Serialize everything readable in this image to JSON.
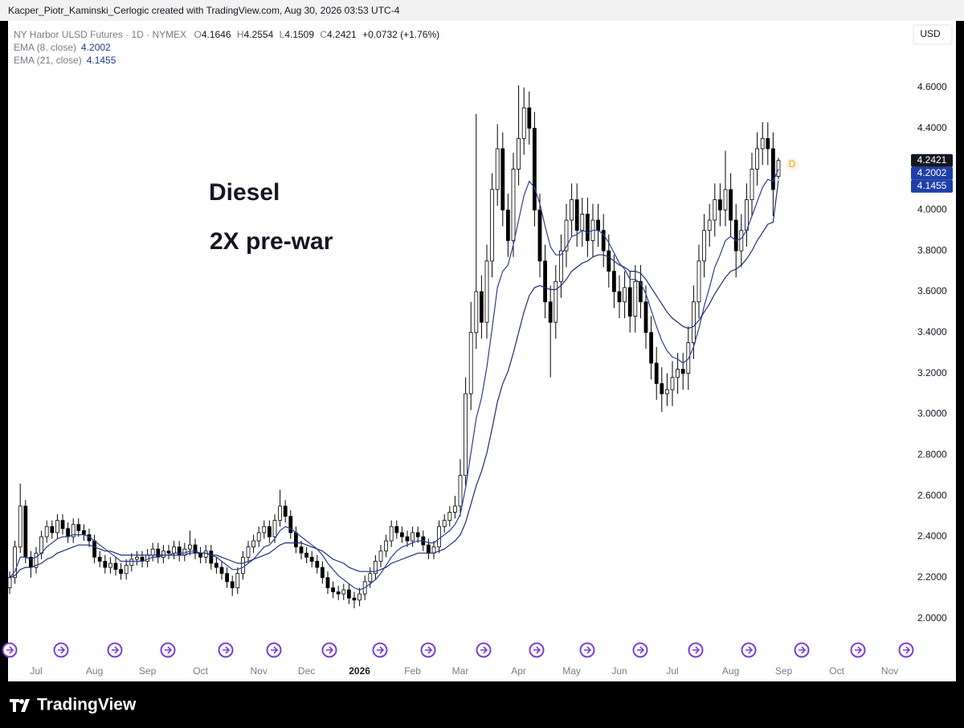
{
  "header": {
    "attribution": "Kacper_Piotr_Kaminski_Cerlogic created with TradingView.com, Aug 30, 2026 03:53 UTC-4"
  },
  "chart_data": {
    "type": "candlestick",
    "title": "NY Harbor ULSD Futures · 1D · NYMEX",
    "ohlc_labels": [
      "O",
      "H",
      "L",
      "C"
    ],
    "change": "+0.0732 (+1.76%)",
    "currency": "USD",
    "session_marker": "D",
    "annotations": [
      "Diesel",
      "2X pre-war"
    ],
    "grid": false,
    "up_color": "#ffffff",
    "down_color": "#000000",
    "categories": [
      null,
      null,
      null,
      null,
      null,
      "Jul",
      null,
      null,
      null,
      null,
      null,
      null,
      null,
      null,
      null,
      null,
      "Aug",
      null,
      null,
      null,
      null,
      null,
      null,
      null,
      null,
      null,
      "Sep",
      null,
      null,
      null,
      null,
      null,
      null,
      null,
      null,
      null,
      "Oct",
      null,
      null,
      null,
      null,
      null,
      null,
      null,
      null,
      null,
      null,
      "Nov",
      null,
      null,
      null,
      null,
      null,
      null,
      null,
      null,
      "Dec",
      null,
      null,
      null,
      null,
      null,
      null,
      null,
      null,
      null,
      "2026",
      null,
      null,
      null,
      null,
      null,
      null,
      null,
      null,
      null,
      "Feb",
      null,
      null,
      null,
      null,
      null,
      null,
      null,
      null,
      "Mar",
      null,
      null,
      null,
      null,
      null,
      null,
      null,
      null,
      null,
      null,
      "Apr",
      null,
      null,
      null,
      null,
      null,
      null,
      null,
      null,
      null,
      "May",
      null,
      null,
      null,
      null,
      null,
      null,
      null,
      null,
      "Jun",
      null,
      null,
      null,
      null,
      null,
      null,
      null,
      null,
      null,
      "Jul",
      null,
      null,
      null,
      null,
      null,
      null,
      null,
      null,
      null,
      null,
      "Aug",
      null,
      null,
      null,
      null,
      null,
      null,
      null,
      null,
      null,
      "Sep",
      null,
      null,
      null,
      null,
      null,
      null,
      null,
      null,
      null,
      "Oct",
      null,
      null,
      null,
      null,
      null,
      null,
      null,
      null,
      null,
      "Nov",
      null,
      null,
      null
    ],
    "open": [
      2.15,
      2.2,
      2.35,
      2.55,
      2.3,
      2.25,
      2.32,
      2.4,
      2.45,
      2.42,
      2.48,
      2.44,
      2.4,
      2.46,
      2.43,
      2.41,
      2.38,
      2.3,
      2.28,
      2.25,
      2.27,
      2.24,
      2.22,
      2.26,
      2.29,
      2.3,
      2.28,
      2.31,
      2.34,
      2.3,
      2.33,
      2.32,
      2.35,
      2.31,
      2.34,
      2.36,
      2.32,
      2.3,
      2.33,
      2.27,
      2.25,
      2.22,
      2.18,
      2.15,
      2.22,
      2.3,
      2.35,
      2.38,
      2.42,
      2.45,
      2.4,
      2.48,
      2.55,
      2.5,
      2.42,
      2.35,
      2.32,
      2.3,
      2.28,
      2.25,
      2.2,
      2.15,
      2.13,
      2.12,
      2.14,
      2.1,
      2.09,
      2.12,
      2.18,
      2.22,
      2.28,
      2.33,
      2.38,
      2.45,
      2.42,
      2.4,
      2.38,
      2.42,
      2.4,
      2.36,
      2.32,
      2.35,
      2.45,
      2.48,
      2.52,
      2.55,
      2.7,
      3.1,
      3.4,
      3.6,
      3.45,
      3.75,
      4.1,
      4.3,
      4.0,
      3.85,
      4.2,
      4.35,
      4.5,
      4.4,
      4.0,
      3.75,
      3.55,
      3.45,
      3.65,
      3.8,
      3.95,
      4.05,
      3.9,
      3.98,
      3.85,
      3.95,
      3.9,
      3.8,
      3.7,
      3.6,
      3.55,
      3.62,
      3.48,
      3.65,
      3.55,
      3.4,
      3.25,
      3.15,
      3.1,
      3.12,
      3.18,
      3.22,
      3.2,
      3.35,
      3.55,
      3.75,
      3.9,
      3.95,
      4.05,
      4.0,
      4.1,
      3.95,
      3.8,
      3.9,
      4.05,
      4.2,
      4.3,
      4.35,
      4.3,
      4.1646,
      null,
      null,
      null,
      null,
      null,
      null,
      null,
      null,
      null,
      null,
      null,
      null,
      null,
      null,
      null,
      null,
      null,
      null,
      null,
      null,
      null,
      null,
      null,
      null
    ],
    "high": [
      2.23,
      2.38,
      2.66,
      2.58,
      2.33,
      2.35,
      2.43,
      2.48,
      2.48,
      2.51,
      2.51,
      2.47,
      2.49,
      2.49,
      2.46,
      2.44,
      2.41,
      2.33,
      2.31,
      2.3,
      2.3,
      2.27,
      2.29,
      2.32,
      2.33,
      2.33,
      2.34,
      2.37,
      2.37,
      2.36,
      2.36,
      2.38,
      2.38,
      2.37,
      2.43,
      2.39,
      2.35,
      2.36,
      2.36,
      2.3,
      2.28,
      2.25,
      2.21,
      2.25,
      2.33,
      2.38,
      2.41,
      2.45,
      2.48,
      2.48,
      2.51,
      2.63,
      2.58,
      2.53,
      2.45,
      2.38,
      2.35,
      2.33,
      2.31,
      2.28,
      2.23,
      2.18,
      2.16,
      2.17,
      2.17,
      2.13,
      2.15,
      2.21,
      2.25,
      2.31,
      2.36,
      2.41,
      2.48,
      2.48,
      2.45,
      2.43,
      2.45,
      2.45,
      2.43,
      2.39,
      2.38,
      2.48,
      2.51,
      2.55,
      2.6,
      2.78,
      3.18,
      3.55,
      4.47,
      3.68,
      3.83,
      4.18,
      4.42,
      4.38,
      4.08,
      4.28,
      4.61,
      4.6,
      4.58,
      4.48,
      4.08,
      3.83,
      3.63,
      3.73,
      3.88,
      4.03,
      4.13,
      4.13,
      4.06,
      4.06,
      4.03,
      4.03,
      3.98,
      3.88,
      3.78,
      3.68,
      3.7,
      3.7,
      3.73,
      3.73,
      3.63,
      3.48,
      3.33,
      3.23,
      3.2,
      3.26,
      3.3,
      3.3,
      3.43,
      3.63,
      3.83,
      3.98,
      4.03,
      4.13,
      4.13,
      4.29,
      4.18,
      4.03,
      3.98,
      4.13,
      4.28,
      4.38,
      4.43,
      4.43,
      4.38,
      4.2554,
      null,
      null,
      null,
      null,
      null,
      null,
      null,
      null,
      null,
      null,
      null,
      null,
      null,
      null,
      null,
      null,
      null,
      null,
      null,
      null,
      null,
      null,
      null,
      null
    ],
    "low": [
      2.12,
      2.17,
      2.32,
      2.27,
      2.2,
      2.22,
      2.29,
      2.37,
      2.39,
      2.39,
      2.41,
      2.37,
      2.37,
      2.4,
      2.38,
      2.35,
      2.27,
      2.25,
      2.22,
      2.22,
      2.21,
      2.19,
      2.19,
      2.23,
      2.26,
      2.25,
      2.25,
      2.28,
      2.27,
      2.27,
      2.29,
      2.29,
      2.28,
      2.28,
      2.31,
      2.29,
      2.27,
      2.27,
      2.24,
      2.22,
      2.19,
      2.15,
      2.11,
      2.12,
      2.19,
      2.27,
      2.32,
      2.35,
      2.39,
      2.37,
      2.37,
      2.45,
      2.47,
      2.39,
      2.32,
      2.29,
      2.27,
      2.25,
      2.22,
      2.17,
      2.12,
      2.1,
      2.09,
      2.09,
      2.07,
      2.05,
      2.06,
      2.09,
      2.15,
      2.19,
      2.25,
      2.3,
      2.35,
      2.39,
      2.37,
      2.35,
      2.35,
      2.37,
      2.33,
      2.29,
      2.29,
      2.32,
      2.42,
      2.45,
      2.49,
      2.5,
      2.65,
      3.02,
      3.32,
      3.37,
      3.37,
      3.67,
      4.02,
      3.92,
      3.77,
      3.77,
      4.12,
      4.27,
      4.32,
      3.92,
      3.67,
      3.47,
      3.18,
      3.37,
      3.57,
      3.72,
      3.87,
      3.82,
      3.82,
      3.77,
      3.77,
      3.82,
      3.72,
      3.62,
      3.52,
      3.47,
      3.47,
      3.4,
      3.4,
      3.47,
      3.32,
      3.17,
      3.07,
      3.01,
      3.04,
      3.04,
      3.1,
      3.12,
      3.12,
      3.27,
      3.47,
      3.67,
      3.82,
      3.87,
      3.92,
      3.92,
      3.87,
      3.67,
      3.72,
      3.82,
      3.97,
      4.12,
      4.22,
      4.22,
      3.97,
      4.1509,
      null,
      null,
      null,
      null,
      null,
      null,
      null,
      null,
      null,
      null,
      null,
      null,
      null,
      null,
      null,
      null,
      null,
      null,
      null,
      null,
      null,
      null,
      null,
      null
    ],
    "close": [
      2.2,
      2.35,
      2.55,
      2.3,
      2.25,
      2.32,
      2.4,
      2.45,
      2.42,
      2.48,
      2.44,
      2.4,
      2.46,
      2.43,
      2.41,
      2.38,
      2.3,
      2.28,
      2.25,
      2.27,
      2.24,
      2.22,
      2.26,
      2.29,
      2.3,
      2.28,
      2.31,
      2.34,
      2.3,
      2.33,
      2.32,
      2.35,
      2.31,
      2.34,
      2.36,
      2.32,
      2.3,
      2.33,
      2.27,
      2.25,
      2.22,
      2.18,
      2.15,
      2.22,
      2.3,
      2.35,
      2.38,
      2.42,
      2.45,
      2.4,
      2.48,
      2.55,
      2.5,
      2.42,
      2.35,
      2.32,
      2.3,
      2.28,
      2.25,
      2.2,
      2.15,
      2.13,
      2.12,
      2.14,
      2.1,
      2.09,
      2.12,
      2.18,
      2.22,
      2.28,
      2.33,
      2.38,
      2.45,
      2.42,
      2.4,
      2.38,
      2.42,
      2.4,
      2.36,
      2.32,
      2.35,
      2.45,
      2.48,
      2.52,
      2.55,
      2.7,
      3.1,
      3.4,
      3.6,
      3.45,
      3.75,
      4.1,
      4.3,
      4.0,
      3.85,
      4.2,
      4.35,
      4.5,
      4.4,
      4.0,
      3.75,
      3.55,
      3.45,
      3.65,
      3.8,
      3.95,
      4.05,
      3.9,
      3.98,
      3.85,
      3.95,
      3.9,
      3.8,
      3.7,
      3.6,
      3.55,
      3.62,
      3.48,
      3.65,
      3.55,
      3.4,
      3.25,
      3.15,
      3.1,
      3.12,
      3.18,
      3.22,
      3.2,
      3.35,
      3.55,
      3.75,
      3.9,
      3.95,
      4.05,
      4.0,
      4.1,
      3.95,
      3.8,
      3.9,
      4.05,
      4.2,
      4.3,
      4.35,
      4.3,
      4.1,
      4.2421,
      null,
      null,
      null,
      null,
      null,
      null,
      null,
      null,
      null,
      null,
      null,
      null,
      null,
      null,
      null,
      null,
      null,
      null,
      null,
      null,
      null,
      null,
      null,
      null
    ],
    "series": [
      {
        "name": "EMA (8, close)",
        "color": "#2b3f94",
        "values": [
          2.2,
          2.23,
          2.3,
          2.3,
          2.29,
          2.3,
          2.32,
          2.35,
          2.37,
          2.39,
          2.4,
          2.4,
          2.41,
          2.41,
          2.41,
          2.4,
          2.38,
          2.36,
          2.34,
          2.32,
          2.3,
          2.28,
          2.28,
          2.28,
          2.28,
          2.28,
          2.29,
          2.3,
          2.3,
          2.31,
          2.31,
          2.32,
          2.32,
          2.32,
          2.33,
          2.33,
          2.32,
          2.32,
          2.31,
          2.3,
          2.28,
          2.26,
          2.24,
          2.24,
          2.25,
          2.27,
          2.29,
          2.32,
          2.35,
          2.36,
          2.39,
          2.43,
          2.45,
          2.44,
          2.42,
          2.4,
          2.38,
          2.36,
          2.34,
          2.31,
          2.27,
          2.24,
          2.21,
          2.19,
          2.17,
          2.15,
          2.14,
          2.15,
          2.17,
          2.19,
          2.22,
          2.26,
          2.3,
          2.33,
          2.35,
          2.36,
          2.37,
          2.38,
          2.38,
          2.37,
          2.37,
          2.39,
          2.41,
          2.43,
          2.46,
          2.51,
          2.64,
          2.81,
          2.98,
          3.08,
          3.23,
          3.42,
          3.62,
          3.7,
          3.73,
          3.83,
          3.95,
          4.07,
          4.14,
          4.11,
          4.03,
          3.92,
          3.82,
          3.78,
          3.78,
          3.82,
          3.87,
          3.88,
          3.9,
          3.89,
          3.9,
          3.9,
          3.88,
          3.84,
          3.79,
          3.74,
          3.71,
          3.66,
          3.66,
          3.64,
          3.59,
          3.51,
          3.43,
          3.36,
          3.31,
          3.28,
          3.27,
          3.25,
          3.27,
          3.33,
          3.42,
          3.53,
          3.62,
          3.72,
          3.78,
          3.85,
          3.87,
          3.85,
          3.86,
          3.9,
          3.97,
          4.04,
          4.11,
          4.15,
          4.14,
          4.2002,
          null,
          null,
          null,
          null,
          null,
          null,
          null,
          null,
          null,
          null,
          null,
          null,
          null,
          null,
          null,
          null,
          null,
          null,
          null,
          null,
          null,
          null,
          null,
          null
        ]
      },
      {
        "name": "EMA (21, close)",
        "color": "#1c2d74",
        "values": [
          2.2,
          2.21,
          2.24,
          2.25,
          2.25,
          2.26,
          2.27,
          2.29,
          2.3,
          2.32,
          2.33,
          2.34,
          2.35,
          2.36,
          2.36,
          2.36,
          2.35,
          2.34,
          2.33,
          2.33,
          2.32,
          2.31,
          2.31,
          2.31,
          2.31,
          2.31,
          2.31,
          2.31,
          2.31,
          2.31,
          2.31,
          2.31,
          2.31,
          2.31,
          2.32,
          2.32,
          2.32,
          2.32,
          2.31,
          2.31,
          2.3,
          2.29,
          2.28,
          2.27,
          2.27,
          2.28,
          2.29,
          2.3,
          2.31,
          2.32,
          2.34,
          2.36,
          2.37,
          2.37,
          2.37,
          2.37,
          2.36,
          2.35,
          2.34,
          2.33,
          2.31,
          2.29,
          2.28,
          2.27,
          2.25,
          2.24,
          2.23,
          2.23,
          2.23,
          2.23,
          2.24,
          2.25,
          2.27,
          2.28,
          2.29,
          2.3,
          2.31,
          2.32,
          2.32,
          2.32,
          2.32,
          2.33,
          2.34,
          2.36,
          2.38,
          2.41,
          2.47,
          2.56,
          2.65,
          2.72,
          2.81,
          2.93,
          3.06,
          3.15,
          3.21,
          3.3,
          3.4,
          3.5,
          3.58,
          3.62,
          3.63,
          3.62,
          3.61,
          3.61,
          3.63,
          3.66,
          3.7,
          3.72,
          3.74,
          3.75,
          3.77,
          3.78,
          3.78,
          3.77,
          3.75,
          3.73,
          3.72,
          3.7,
          3.7,
          3.69,
          3.66,
          3.62,
          3.58,
          3.54,
          3.5,
          3.47,
          3.45,
          3.43,
          3.42,
          3.43,
          3.46,
          3.5,
          3.54,
          3.59,
          3.63,
          3.67,
          3.7,
          3.71,
          3.73,
          3.76,
          3.8,
          3.85,
          3.89,
          3.93,
          3.94,
          4.1455,
          null,
          null,
          null,
          null,
          null,
          null,
          null,
          null,
          null,
          null,
          null,
          null,
          null,
          null,
          null,
          null,
          null,
          null,
          null,
          null,
          null,
          null,
          null,
          null
        ]
      }
    ],
    "ylim": [
      1.92,
      4.91
    ],
    "yticks": [
      {
        "value": 2,
        "label": "2.0000"
      },
      {
        "value": 2.2,
        "label": "2.2000"
      },
      {
        "value": 2.4,
        "label": "2.4000"
      },
      {
        "value": 2.6,
        "label": "2.6000"
      },
      {
        "value": 2.8,
        "label": "2.8000"
      },
      {
        "value": 3,
        "label": "3.0000"
      },
      {
        "value": 3.2,
        "label": "3.2000"
      },
      {
        "value": 3.4,
        "label": "3.4000"
      },
      {
        "value": 3.6,
        "label": "3.6000"
      },
      {
        "value": 3.8,
        "label": "3.8000"
      },
      {
        "value": 4,
        "label": "4.0000"
      },
      {
        "value": 4.2,
        "label": "4.2000"
      },
      {
        "value": 4.4,
        "label": "4.4000"
      },
      {
        "value": 4.6,
        "label": "4.6000"
      }
    ]
  },
  "footer": {
    "brand": "TradingView"
  }
}
